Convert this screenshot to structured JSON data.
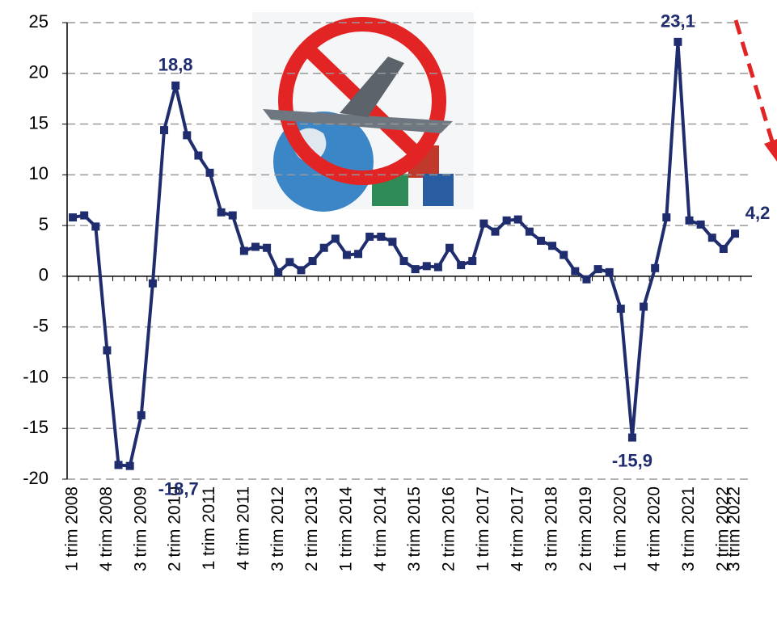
{
  "chart_data": {
    "type": "line",
    "categories": [
      "1 trim 2008",
      null,
      null,
      "4 trim 2008",
      null,
      null,
      "3 trim 2009",
      null,
      null,
      "2 trim 2010",
      null,
      null,
      "1 trim 2011",
      null,
      null,
      "4 trim 2011",
      null,
      null,
      "3 trim 2012",
      null,
      null,
      "2 trim 2013",
      null,
      null,
      "1 trim 2014",
      null,
      null,
      "4 trim 2014",
      null,
      null,
      "3 trim 2015",
      null,
      null,
      "2 trim 2016",
      null,
      null,
      "1 trim 2017",
      null,
      null,
      "4 trim 2017",
      null,
      null,
      "3 trim 2018",
      null,
      null,
      "2 trim 2019",
      null,
      null,
      "1 trim 2020",
      null,
      null,
      "4 trim 2020",
      null,
      null,
      "3 trim 2021",
      null,
      null,
      "2 trim 2022",
      "3 trim 2022"
    ],
    "series": [
      {
        "color": "#1f2d6e",
        "values": [
          5.8,
          6.0,
          4.9,
          -7.3,
          -18.6,
          -18.7,
          -13.7,
          -0.7,
          14.4,
          18.8,
          13.9,
          11.9,
          10.2,
          6.3,
          6.0,
          2.5,
          2.9,
          2.8,
          0.4,
          1.4,
          0.6,
          1.5,
          2.8,
          3.7,
          2.1,
          2.2,
          3.9,
          3.9,
          3.4,
          1.5,
          0.7,
          1.0,
          0.9,
          2.8,
          1.1,
          1.5,
          5.2,
          4.4,
          5.5,
          5.6,
          4.4,
          3.5,
          3.0,
          2.1,
          0.5,
          -0.3,
          0.7,
          0.4,
          -3.2,
          -15.9,
          -3.0,
          0.8,
          5.8,
          23.1,
          5.5,
          5.1,
          3.8,
          2.7,
          4.2
        ],
        "value_labels": [
          null,
          null,
          null,
          null,
          null,
          "-18,7",
          null,
          null,
          null,
          "18,8",
          null,
          null,
          null,
          null,
          null,
          null,
          null,
          null,
          null,
          null,
          null,
          null,
          null,
          null,
          null,
          null,
          null,
          null,
          null,
          null,
          null,
          null,
          null,
          null,
          null,
          null,
          null,
          null,
          null,
          null,
          null,
          null,
          null,
          null,
          null,
          null,
          null,
          null,
          null,
          "-15,9",
          null,
          null,
          null,
          "23,1",
          null,
          null,
          null,
          null,
          "4,2"
        ]
      }
    ],
    "ylim": [
      -20,
      25
    ],
    "yticks": [
      -20,
      -15,
      -10,
      -5,
      0,
      5,
      10,
      15,
      20,
      25
    ],
    "grid": true
  }
}
